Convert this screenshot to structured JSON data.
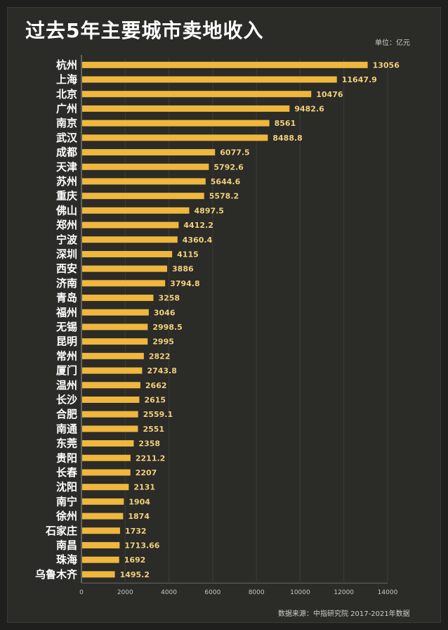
{
  "chart_data": {
    "type": "bar",
    "orientation": "horizontal",
    "title": "过去5年主要城市卖地收入",
    "unit": "单位：亿元",
    "source": "数据来源：中指研究院 2017-2021年数据",
    "bar_color": "#f0b73d",
    "value_label_color": "#f3d07a",
    "background_color": "#2b2b28",
    "xlim": [
      0,
      14000
    ],
    "x_ticks": [
      "0",
      "2000",
      "4000",
      "6000",
      "8000",
      "10000",
      "12000",
      "14000"
    ],
    "x_tick_values": [
      0,
      2000,
      4000,
      6000,
      8000,
      10000,
      12000,
      14000
    ],
    "grid": true,
    "categories": [
      "杭州",
      "上海",
      "北京",
      "广州",
      "南京",
      "武汉",
      "成都",
      "天津",
      "苏州",
      "重庆",
      "佛山",
      "郑州",
      "宁波",
      "深圳",
      "西安",
      "济南",
      "青岛",
      "福州",
      "无锡",
      "昆明",
      "常州",
      "厦门",
      "温州",
      "长沙",
      "合肥",
      "南通",
      "东莞",
      "贵阳",
      "长春",
      "沈阳",
      "南宁",
      "徐州",
      "石家庄",
      "南昌",
      "珠海",
      "乌鲁木齐"
    ],
    "values": [
      13056,
      11647.9,
      10476,
      9482.6,
      8561,
      8488.8,
      6077.5,
      5792.6,
      5644.6,
      5578.2,
      4897.5,
      4412.2,
      4360.4,
      4115,
      3886,
      3794.8,
      3258,
      3046,
      2998.5,
      2995,
      2822,
      2743.8,
      2662,
      2615,
      2559.1,
      2551,
      2358,
      2211.2,
      2207,
      2131,
      1904,
      1874,
      1732,
      1713.66,
      1692,
      1495.2
    ],
    "value_labels": [
      "13056",
      "11647.9",
      "10476",
      "9482.6",
      "8561",
      "8488.8",
      "6077.5",
      "5792.6",
      "5644.6",
      "5578.2",
      "4897.5",
      "4412.2",
      "4360.4",
      "4115",
      "3886",
      "3794.8",
      "3258",
      "3046",
      "2998.5",
      "2995",
      "2822",
      "2743.8",
      "2662",
      "2615",
      "2559.1",
      "2551",
      "2358",
      "2211.2",
      "2207",
      "2131",
      "1904",
      "1874",
      "1732",
      "1713.66",
      "1692",
      "1495.2"
    ]
  }
}
